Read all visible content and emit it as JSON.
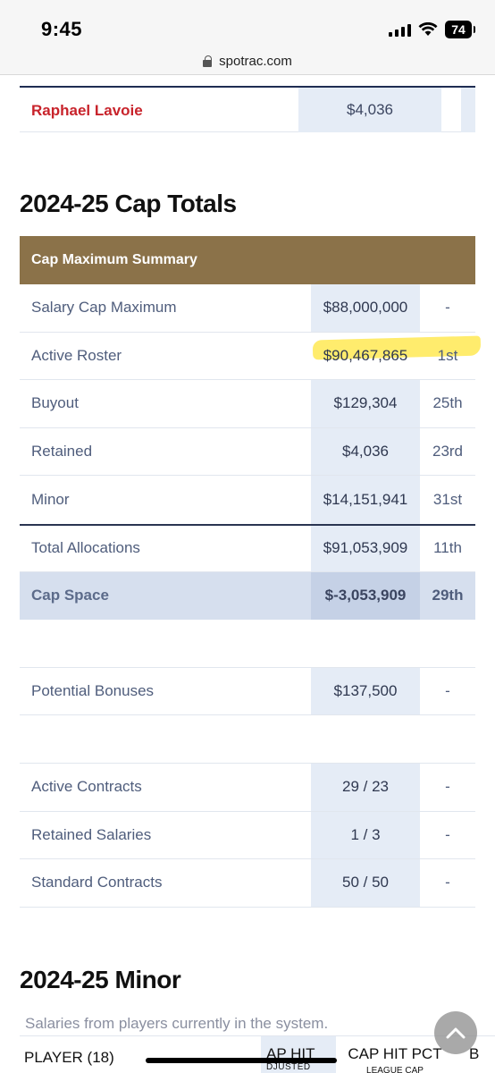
{
  "status_bar": {
    "time": "9:45",
    "battery": "74"
  },
  "browser": {
    "url": "spotrac.com"
  },
  "player_row": {
    "name": "Raphael Lavoie",
    "cap_hit": "$4,036"
  },
  "cap_totals": {
    "title": "2024-25 Cap Totals",
    "header": "Cap Maximum Summary",
    "rows": [
      {
        "label": "Salary Cap Maximum",
        "value": "$88,000,000",
        "rank": "-"
      },
      {
        "label": "Active Roster",
        "value": "$90,467,865",
        "rank": "1st"
      },
      {
        "label": "Buyout",
        "value": "$129,304",
        "rank": "25th"
      },
      {
        "label": "Retained",
        "value": "$4,036",
        "rank": "23rd"
      },
      {
        "label": "Minor",
        "value": "$14,151,941",
        "rank": "31st"
      },
      {
        "label": "Total Allocations",
        "value": "$91,053,909",
        "rank": "11th"
      },
      {
        "label": "Cap Space",
        "value": "$-3,053,909",
        "rank": "29th"
      }
    ],
    "bonuses": {
      "label": "Potential Bonuses",
      "value": "$137,500",
      "rank": "-"
    },
    "contracts": [
      {
        "label": "Active Contracts",
        "value": "29 / 23",
        "rank": "-"
      },
      {
        "label": "Retained Salaries",
        "value": "1 / 3",
        "rank": "-"
      },
      {
        "label": "Standard Contracts",
        "value": "50 / 50",
        "rank": "-"
      }
    ]
  },
  "minor": {
    "title": "2024-25 Minor",
    "subtitle": "Salaries from players currently in the system.",
    "columns": {
      "player": "PLAYER (18)",
      "cap_hit": "AP HIT",
      "cap_hit_sub": "DJUSTED",
      "cap_hit_pct": "CAP HIT PCT",
      "cap_hit_pct_sub": "LEAGUE CAP",
      "extra": "B"
    }
  },
  "colors": {
    "header_brown": "#8b7249",
    "player_red": "#c8232b",
    "highlight": "#ffe63c"
  },
  "icons": {
    "lock": "lock-icon",
    "scroll_top": "chevron-up-icon",
    "signal": "signal-icon",
    "wifi": "wifi-icon"
  }
}
